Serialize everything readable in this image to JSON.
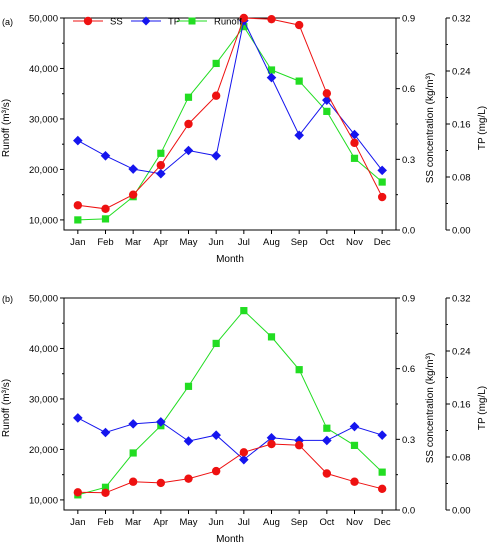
{
  "chart_data": [
    {
      "panel": "(a)",
      "type": "line",
      "categories": [
        "Jan",
        "Feb",
        "Mar",
        "Apr",
        "May",
        "Jun",
        "Jul",
        "Aug",
        "Sep",
        "Oct",
        "Nov",
        "Dec"
      ],
      "xlabel": "Month",
      "axes": {
        "left": {
          "label": "Runoff (m³/s)",
          "ylim": [
            8000,
            50000
          ],
          "ticks": [
            10000,
            20000,
            30000,
            40000,
            50000
          ],
          "tick_labels": [
            "10,000",
            "20,000",
            "30,000",
            "40,000",
            "50,000"
          ]
        },
        "right1": {
          "label": "SS concentration (kg/m³)",
          "ylim": [
            0,
            0.9
          ],
          "ticks": [
            0,
            0.3,
            0.6,
            0.9
          ],
          "tick_labels": [
            "0.0",
            "0.3",
            "0.6",
            "0.9"
          ]
        },
        "right2": {
          "label": "TP (mg/L)",
          "ylim": [
            0,
            0.32
          ],
          "ticks": [
            0,
            0.08,
            0.16,
            0.24,
            0.32
          ],
          "tick_labels": [
            "0.00",
            "0.08",
            "0.16",
            "0.24",
            "0.32"
          ]
        }
      },
      "series": [
        {
          "name": "SS",
          "axis": "right1",
          "color": "#ee1111",
          "marker": "circle",
          "values": [
            0.105,
            0.09,
            0.15,
            0.275,
            0.45,
            0.57,
            0.9,
            0.895,
            0.87,
            0.58,
            0.37,
            0.14
          ]
        },
        {
          "name": "TP",
          "axis": "right2",
          "color": "#1515ee",
          "marker": "diamond",
          "values": [
            0.135,
            0.112,
            0.092,
            0.085,
            0.12,
            0.112,
            0.316,
            0.23,
            0.143,
            0.196,
            0.144,
            0.09
          ]
        },
        {
          "name": "Runoff",
          "axis": "left",
          "color": "#22dd22",
          "marker": "square",
          "values": [
            10000,
            10200,
            14600,
            23200,
            34300,
            41000,
            48300,
            39700,
            37500,
            31500,
            22200,
            17500
          ]
        }
      ],
      "legend": {
        "placement": "top-left",
        "order": [
          "SS",
          "TP",
          "Runoff"
        ]
      }
    },
    {
      "panel": "(b)",
      "type": "line",
      "categories": [
        "Jan",
        "Feb",
        "Mar",
        "Apr",
        "May",
        "Jun",
        "Jul",
        "Aug",
        "Sep",
        "Oct",
        "Nov",
        "Dec"
      ],
      "xlabel": "Month",
      "axes": {
        "left": {
          "label": "Runoff (m³/s)",
          "ylim": [
            8000,
            50000
          ],
          "ticks": [
            10000,
            20000,
            30000,
            40000,
            50000
          ],
          "tick_labels": [
            "10,000",
            "20,000",
            "30,000",
            "40,000",
            "50,000"
          ]
        },
        "right1": {
          "label": "SS concentration (kg/m³)",
          "ylim": [
            0,
            0.9
          ],
          "ticks": [
            0,
            0.3,
            0.6,
            0.9
          ],
          "tick_labels": [
            "0.0",
            "0.3",
            "0.6",
            "0.9"
          ]
        },
        "right2": {
          "label": "TP (mg/L)",
          "ylim": [
            0,
            0.32
          ],
          "ticks": [
            0,
            0.08,
            0.16,
            0.24,
            0.32
          ],
          "tick_labels": [
            "0.00",
            "0.08",
            "0.16",
            "0.24",
            "0.32"
          ]
        }
      },
      "series": [
        {
          "name": "SS",
          "axis": "right1",
          "color": "#ee1111",
          "marker": "circle",
          "values": [
            0.075,
            0.073,
            0.12,
            0.115,
            0.133,
            0.165,
            0.245,
            0.28,
            0.275,
            0.155,
            0.12,
            0.09
          ]
        },
        {
          "name": "TP",
          "axis": "right2",
          "color": "#1515ee",
          "marker": "diamond",
          "values": [
            0.139,
            0.117,
            0.13,
            0.133,
            0.104,
            0.113,
            0.076,
            0.109,
            0.105,
            0.105,
            0.126,
            0.113
          ]
        },
        {
          "name": "Runoff",
          "axis": "left",
          "color": "#22dd22",
          "marker": "square",
          "values": [
            11000,
            12500,
            19300,
            24700,
            32500,
            41000,
            47500,
            42300,
            35800,
            24200,
            20800,
            15500
          ]
        }
      ]
    }
  ]
}
